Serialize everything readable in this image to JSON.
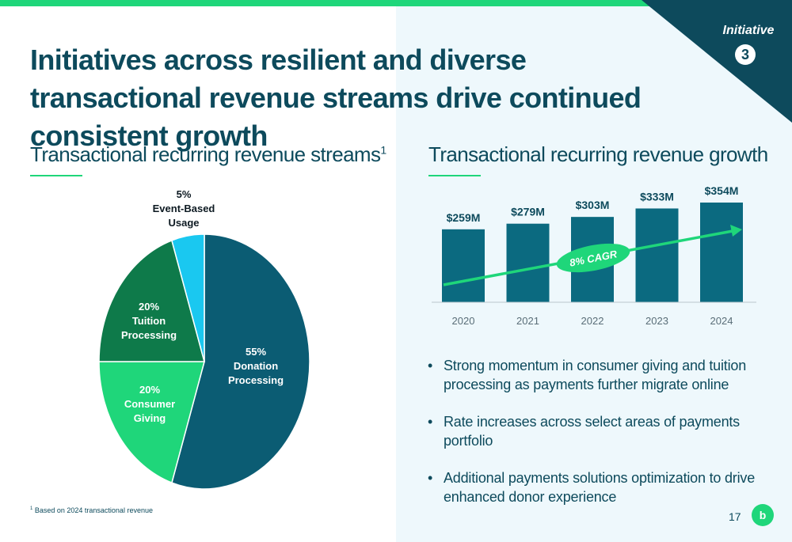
{
  "title": "Initiatives across resilient and diverse transactional revenue streams drive continued consistent growth",
  "initiative": {
    "label": "Initiative",
    "number": "3"
  },
  "left_section": {
    "title": "Transactional recurring revenue streams",
    "footnote_marker": "1"
  },
  "right_section": {
    "title": "Transactional recurring revenue growth"
  },
  "bullets": [
    "Strong momentum in consumer giving and tuition processing as payments further migrate online",
    "Rate increases across select areas of payments portfolio",
    "Additional payments solutions optimization to drive enhanced donor experience"
  ],
  "footnote": {
    "marker": "1",
    "text": "Based on 2024 transactional revenue"
  },
  "page_number": "17",
  "logo_text": "b",
  "colors": {
    "dark_teal": "#0d4a5c",
    "bar_teal": "#0b6a80",
    "bright_green": "#1fd67a",
    "dark_green": "#0e7a4a",
    "cyan": "#1ac8f0",
    "panel_bg": "#eef8fc"
  },
  "chart_data": [
    {
      "type": "pie",
      "slices": [
        {
          "pct": "55%",
          "lines": [
            "Donation",
            "Processing"
          ],
          "value": 55,
          "color": "#0b5c73"
        },
        {
          "pct": "20%",
          "lines": [
            "Consumer",
            "Giving"
          ],
          "value": 20,
          "color": "#1fd67a"
        },
        {
          "pct": "20%",
          "lines": [
            "Tuition",
            "Processing"
          ],
          "value": 20,
          "color": "#0e7a4a"
        },
        {
          "pct": "5%",
          "lines": [
            "Event-Based",
            "Usage"
          ],
          "value": 5,
          "color": "#1ac8f0"
        }
      ]
    },
    {
      "type": "bar",
      "categories": [
        "2020",
        "2021",
        "2022",
        "2023",
        "2024"
      ],
      "values": [
        259,
        279,
        303,
        333,
        354
      ],
      "labels": [
        "$259M",
        "$279M",
        "$303M",
        "$333M",
        "$354M"
      ],
      "unit": "$M",
      "annotation": "8% CAGR"
    }
  ]
}
